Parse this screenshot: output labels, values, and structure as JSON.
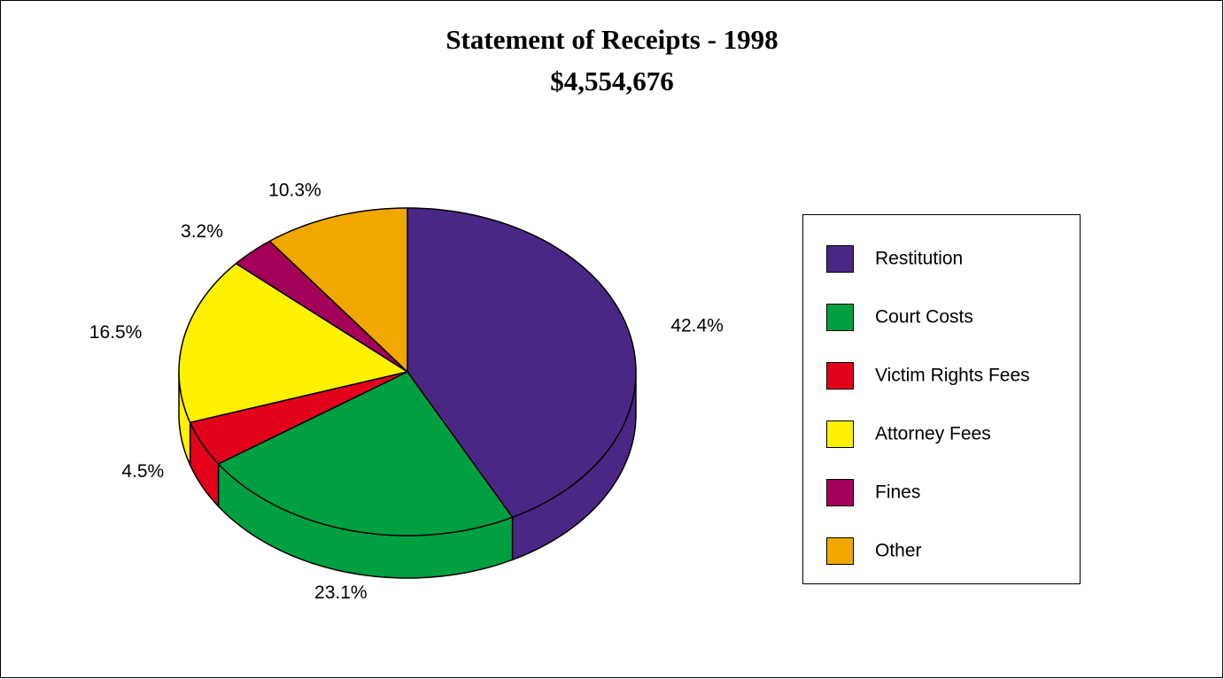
{
  "chart_data": {
    "type": "pie3d",
    "title": "Statement of Receipts - 1998",
    "subtitle": "$4,554,676",
    "categories": [
      "Restitution",
      "Court Costs",
      "Victim Rights Fees",
      "Attorney Fees",
      "Fines",
      "Other"
    ],
    "values": [
      42.4,
      23.1,
      4.5,
      16.5,
      3.2,
      10.3
    ],
    "value_labels": [
      "42.4%",
      "23.1%",
      "4.5%",
      "16.5%",
      "3.2%",
      "10.3%"
    ],
    "colors": [
      "#4b2785",
      "#00a040",
      "#e2001a",
      "#fff200",
      "#a3005a",
      "#f0a800"
    ],
    "legend": "right"
  }
}
